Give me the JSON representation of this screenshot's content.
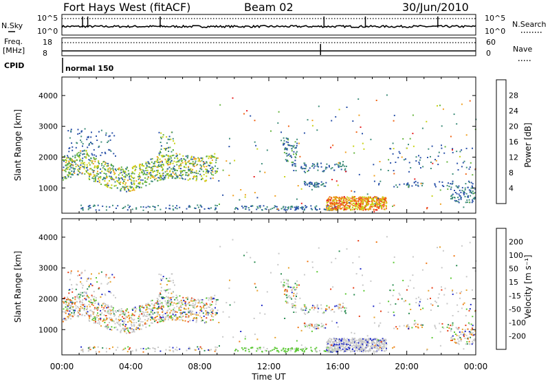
{
  "header": {
    "radar": "Fort Hays West (fitACF)",
    "beam": "Beam 02",
    "date": "30/Jun/2010"
  },
  "top_panels": {
    "nsky_label": "N.Sky",
    "nsky_ticks": [
      "10^5",
      "10^0"
    ],
    "nsearch_label": "N.Search",
    "nsearch_ticks": [
      "10^5",
      "10^0"
    ],
    "freq_label": "Freq.",
    "freq_unit": "[MHz]",
    "freq_ticks": [
      "18",
      "8"
    ],
    "nave_label": "Nave",
    "nave_ticks": [
      "60",
      "0"
    ],
    "cpid_label": "CPID",
    "cpid_value": "normal 150"
  },
  "chart_data": [
    {
      "type": "heatmap",
      "name": "power",
      "ylabel": "Slant Range [km]",
      "yticks": [
        "1000",
        "2000",
        "3000",
        "4000"
      ],
      "ylim": [
        180,
        4600
      ],
      "xlim": [
        "00:00",
        "24:00"
      ],
      "colorbar": {
        "label": "Power [dB]",
        "ticks": [
          "4",
          "8",
          "12",
          "16",
          "20",
          "24",
          "28"
        ],
        "colors": [
          "#0a14e6",
          "#2850a8",
          "#3c8c78",
          "#64b43c",
          "#c8d214",
          "#f0a01e",
          "#f06414",
          "#e61e1e"
        ]
      }
    },
    {
      "type": "heatmap",
      "name": "velocity",
      "ylabel": "Slant Range [km]",
      "yticks": [
        "1000",
        "2000",
        "3000",
        "4000"
      ],
      "ylim": [
        180,
        4600
      ],
      "xlim": [
        "00:00",
        "24:00"
      ],
      "colorbar": {
        "label": "Velocity [m s⁻¹]",
        "ticks": [
          "200",
          "100",
          "50",
          "15",
          "-15",
          "-50",
          "-100",
          "-200"
        ],
        "colors": [
          "#1e28c8",
          "#3264b4",
          "#288c50",
          "#5ac832",
          "#c8c8c8",
          "#e6a028",
          "#f07814",
          "#e63c14",
          "#e61414"
        ]
      }
    }
  ],
  "xaxis": {
    "label": "Time UT",
    "ticks": [
      "00:00",
      "04:00",
      "08:00",
      "12:00",
      "16:00",
      "20:00",
      "00:00"
    ]
  }
}
